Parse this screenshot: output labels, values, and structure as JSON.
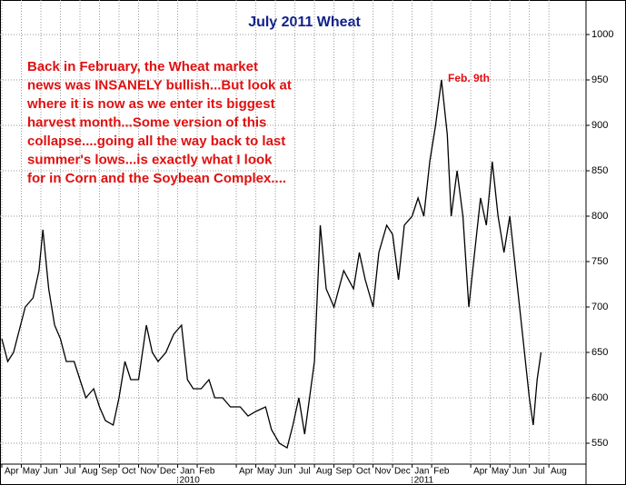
{
  "chart_data": {
    "type": "line",
    "title": "July 2011 Wheat",
    "annotation_lines": [
      "Back in February, the Wheat market",
      "news was INSANELY bullish...But look at",
      "where it is now as we enter its biggest",
      "harvest month...Some version of this",
      "collapse....going all the way back to last",
      "summer's lows...is exactly what I look",
      "for in Corn and the Soybean Complex...."
    ],
    "peak_label": "Feb. 9th",
    "xlim": [
      0,
      29.9
    ],
    "ylim": [
      527,
      1038
    ],
    "yticks": [
      550,
      600,
      650,
      700,
      750,
      800,
      850,
      900,
      950,
      1000
    ],
    "grid": true,
    "xticks": [
      {
        "value": 0,
        "label": "Apr"
      },
      {
        "value": 1,
        "label": "May"
      },
      {
        "value": 2,
        "label": "Jun"
      },
      {
        "value": 3,
        "label": "Jul"
      },
      {
        "value": 4,
        "label": "Aug"
      },
      {
        "value": 5,
        "label": "Sep"
      },
      {
        "value": 6,
        "label": "Oct"
      },
      {
        "value": 7,
        "label": "Nov"
      },
      {
        "value": 8,
        "label": "Dec"
      },
      {
        "value": 9,
        "label": "Jan"
      },
      {
        "value": 10,
        "label": "Feb"
      },
      {
        "value": 12,
        "label": "Apr"
      },
      {
        "value": 13,
        "label": "May"
      },
      {
        "value": 14,
        "label": "Jun"
      },
      {
        "value": 15,
        "label": "Jul"
      },
      {
        "value": 16,
        "label": "Aug"
      },
      {
        "value": 17,
        "label": "Sep"
      },
      {
        "value": 18,
        "label": "Oct"
      },
      {
        "value": 19,
        "label": "Nov"
      },
      {
        "value": 20,
        "label": "Dec"
      },
      {
        "value": 21,
        "label": "Jan"
      },
      {
        "value": 22,
        "label": "Feb"
      },
      {
        "value": 24,
        "label": "Apr"
      },
      {
        "value": 25,
        "label": "May"
      },
      {
        "value": 26,
        "label": "Jun"
      },
      {
        "value": 27,
        "label": "Jul"
      },
      {
        "value": 28,
        "label": "Aug"
      }
    ],
    "year_labels": [
      {
        "value": 9,
        "label": "2010"
      },
      {
        "value": 21,
        "label": "2011"
      }
    ],
    "series": [
      {
        "name": "July 2011 Wheat",
        "color": "#000000",
        "x": [
          0,
          0.3,
          0.6,
          1.2,
          1.6,
          1.9,
          2.1,
          2.4,
          2.7,
          3.0,
          3.3,
          3.7,
          4.0,
          4.3,
          4.7,
          5.0,
          5.3,
          5.7,
          6.0,
          6.3,
          6.6,
          7.0,
          7.4,
          7.7,
          8.0,
          8.4,
          8.8,
          9.2,
          9.5,
          9.8,
          10.2,
          10.6,
          10.9,
          11.3,
          11.7,
          12.2,
          12.6,
          13.0,
          13.5,
          13.8,
          14.2,
          14.6,
          14.9,
          15.2,
          15.5,
          16.0,
          16.3,
          16.6,
          17.0,
          17.5,
          18.0,
          18.3,
          18.6,
          19.0,
          19.3,
          19.7,
          20.0,
          20.3,
          20.6,
          21.0,
          21.3,
          21.6,
          21.9,
          22.2,
          22.5,
          22.8,
          23.0,
          23.3,
          23.6,
          23.9,
          24.2,
          24.5,
          24.8,
          25.1,
          25.4,
          25.7,
          26.0,
          26.4,
          26.7,
          27.0,
          27.2,
          27.4,
          27.6
        ],
        "values": [
          665,
          640,
          650,
          700,
          710,
          740,
          785,
          720,
          680,
          665,
          640,
          640,
          620,
          600,
          610,
          590,
          575,
          570,
          600,
          640,
          620,
          620,
          680,
          650,
          640,
          650,
          670,
          680,
          620,
          610,
          610,
          620,
          600,
          600,
          590,
          590,
          580,
          585,
          590,
          565,
          550,
          545,
          570,
          600,
          560,
          640,
          790,
          720,
          700,
          740,
          720,
          760,
          730,
          700,
          760,
          790,
          780,
          730,
          790,
          800,
          820,
          800,
          860,
          900,
          950,
          890,
          800,
          850,
          800,
          700,
          760,
          820,
          790,
          860,
          800,
          760,
          800,
          720,
          660,
          600,
          570,
          620,
          650
        ]
      }
    ]
  }
}
